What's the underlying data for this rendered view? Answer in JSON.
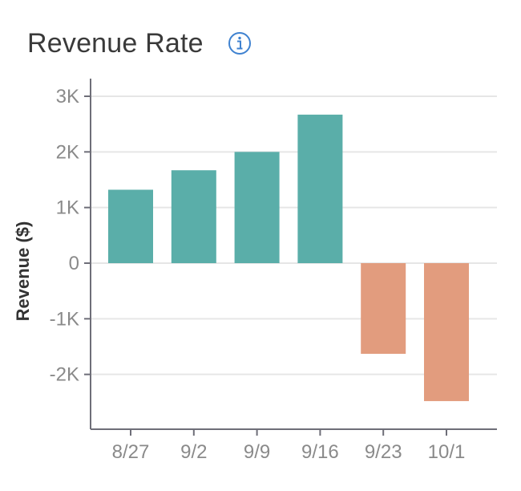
{
  "widget": {
    "title": "Revenue Rate",
    "info_icon": "info-circle-icon"
  },
  "colors": {
    "positive": "#5aaea9",
    "negative": "#e29c7e",
    "axis": "#6e6e78",
    "grid": "#e6e6e6",
    "info_icon": "#3f82d0"
  },
  "chart_data": {
    "type": "bar",
    "categories": [
      "8/27",
      "9/2",
      "9/9",
      "9/16",
      "9/23",
      "10/1"
    ],
    "values": [
      1320,
      1670,
      2000,
      2670,
      -1630,
      -2480
    ],
    "ylabel": "Revenue ($)",
    "xlabel": "",
    "ylim": [
      -3000,
      3000
    ],
    "yticks": [
      3000,
      2000,
      1000,
      0,
      -1000,
      -2000
    ],
    "ytick_labels": [
      "3K",
      "2K",
      "1K",
      "0",
      "-1K",
      "-2K"
    ],
    "grid": true,
    "legend": "none"
  }
}
